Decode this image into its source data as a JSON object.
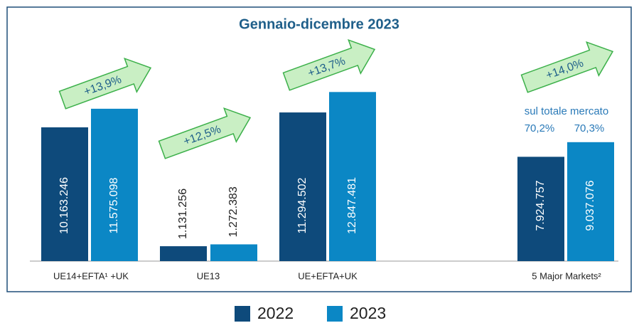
{
  "chart_data": {
    "type": "bar",
    "title": "Gennaio-dicembre 2023",
    "categories": [
      "UE14+EFTA¹ +UK",
      "UE13",
      "UE+EFTA+UK",
      "5 Major Markets²"
    ],
    "series": [
      {
        "name": "2022",
        "color": "#0e4a7b",
        "values": [
          10163246,
          1131256,
          11294502,
          7924757
        ],
        "value_labels": [
          "10.163.246",
          "1.131.256",
          "11.294.502",
          "7.924.757"
        ]
      },
      {
        "name": "2023",
        "color": "#0b87c5",
        "values": [
          11575098,
          1272383,
          12847481,
          9037076
        ],
        "value_labels": [
          "11.575.098",
          "1.272.383",
          "12.847.481",
          "9.037.076"
        ]
      }
    ],
    "growth_labels": [
      "+13,9%",
      "+12,5%",
      "+13,7%",
      "+14,0%"
    ],
    "annotation": {
      "text": "sul totale mercato",
      "share_labels": [
        "70,2%",
        "70,3%"
      ]
    },
    "ylim": [
      0,
      14000000
    ]
  }
}
